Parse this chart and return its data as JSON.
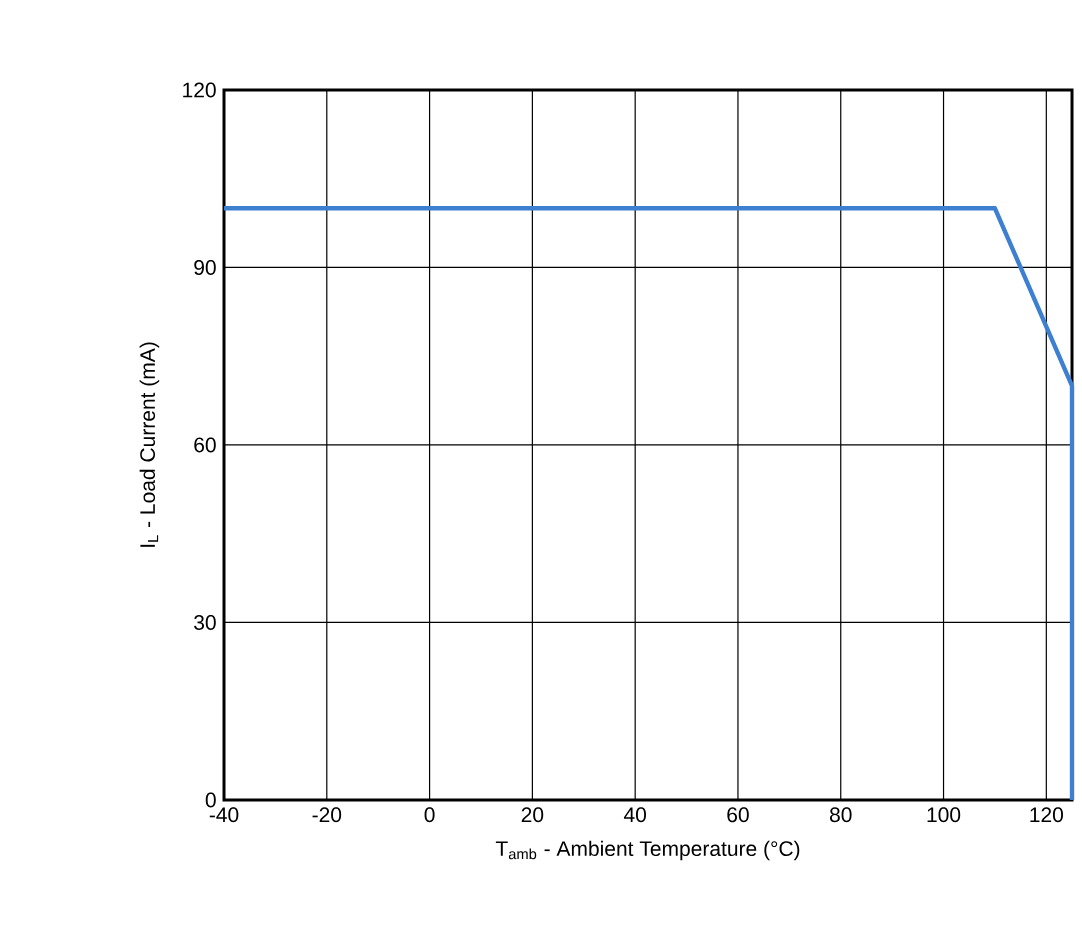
{
  "chart_data": {
    "type": "line",
    "xlabel": "T$_{amb}$ - Ambient Temperature (°C)",
    "ylabel": "I$_{L}$ - Load Current (mA)",
    "x": [
      -40,
      110,
      125,
      125
    ],
    "series": [
      {
        "color": "#3d7fd0",
        "values": [
          100,
          100,
          70,
          0
        ]
      }
    ],
    "xlim": [
      -40,
      125
    ],
    "xticks": [
      -40,
      -20,
      0,
      20,
      40,
      60,
      80,
      100,
      120
    ],
    "ylim": [
      0,
      120
    ],
    "yticks": [
      0,
      30,
      60,
      90,
      120
    ],
    "grid": true,
    "marker": "none",
    "line_style": "solid"
  }
}
